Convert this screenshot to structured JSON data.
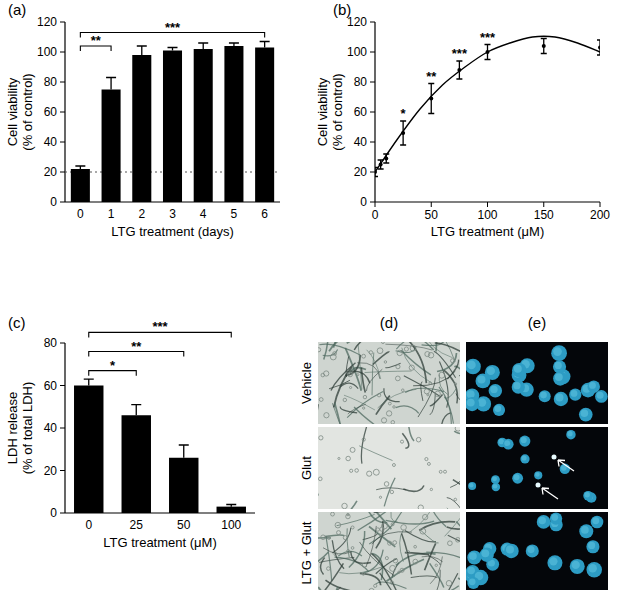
{
  "chart_data": [
    {
      "type": "bar",
      "title": "(a)",
      "categories": [
        0,
        1,
        2,
        3,
        4,
        5,
        6
      ],
      "values": [
        22,
        75,
        98,
        101,
        102,
        104,
        103
      ],
      "errors": [
        2,
        8,
        6,
        2,
        4,
        2,
        4
      ],
      "baseline": 20,
      "color": "#000000",
      "x_label": "LTG treatment (days)",
      "y_label": [
        "Cell viability",
        "(% of control)"
      ],
      "ylim": [
        0,
        120
      ],
      "yticks": [
        0,
        20,
        40,
        60,
        80,
        100,
        120
      ],
      "significance": [
        {
          "from": 0,
          "to": 1,
          "y": 104,
          "label": "**"
        },
        {
          "from": 0,
          "to": 6,
          "y": 113,
          "label": "***"
        }
      ]
    },
    {
      "type": "scatter",
      "title": "(b)",
      "x": [
        0,
        5,
        10,
        25,
        50,
        75,
        100,
        150,
        200
      ],
      "values": [
        20,
        25,
        29,
        46,
        69,
        88,
        100,
        104,
        103
      ],
      "errors": [
        3,
        3,
        3,
        8,
        10,
        6,
        5,
        5,
        5
      ],
      "color": "#000000",
      "fit": {
        "x": [
          0,
          20,
          40,
          60,
          80,
          100,
          120,
          140,
          160,
          180,
          200
        ],
        "values": [
          20,
          42,
          62,
          78,
          90,
          100,
          106,
          110,
          110,
          106,
          100
        ]
      },
      "annotations": [
        {
          "x": 25,
          "label": "*"
        },
        {
          "x": 50,
          "label": "**"
        },
        {
          "x": 75,
          "label": "***"
        },
        {
          "x": 100,
          "label": "***"
        }
      ],
      "x_label": "LTG treatment (μM)",
      "y_label": [
        "Cell viability",
        "(% of control)"
      ],
      "xlim": [
        0,
        200
      ],
      "xticks": [
        0,
        50,
        100,
        150,
        200
      ],
      "ylim": [
        0,
        120
      ],
      "yticks": [
        0,
        20,
        40,
        60,
        80,
        100,
        120
      ]
    },
    {
      "type": "bar",
      "title": "(c)",
      "categories": [
        0,
        25,
        50,
        100
      ],
      "values": [
        60,
        46,
        26,
        3
      ],
      "errors": [
        3,
        5,
        6,
        1
      ],
      "color": "#000000",
      "x_label": "LTG treatment (μM)",
      "y_label": [
        "LDH release",
        "(% of total LDH)"
      ],
      "ylim": [
        0,
        80
      ],
      "yticks": [
        0,
        20,
        40,
        60,
        80
      ],
      "significance": [
        {
          "from": 0,
          "to": 1,
          "y": 67,
          "label": "*"
        },
        {
          "from": 0,
          "to": 2,
          "y": 76,
          "label": "**"
        },
        {
          "from": 0,
          "to": 3,
          "y": 85,
          "label": "***"
        }
      ]
    }
  ],
  "image_panels": {
    "columns": [
      "(d)",
      "(e)"
    ],
    "rows": [
      "Vehicle",
      "Glut",
      "LTG + Glut"
    ]
  }
}
